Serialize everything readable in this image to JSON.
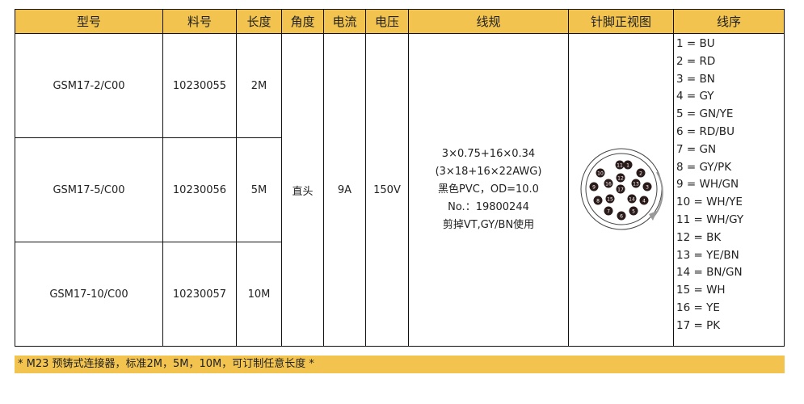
{
  "headers": [
    "型号",
    "料号",
    "长度",
    "角度",
    "电流",
    "电压",
    "线规",
    "针脚正视图",
    "线序"
  ],
  "rows": [
    {
      "model": "GSM17-2/C00",
      "part": "10230055",
      "length": "2M"
    },
    {
      "model": "GSM17-5/C00",
      "part": "10230056",
      "length": "5M"
    },
    {
      "model": "GSM17-10/C00",
      "part": "10230057",
      "length": "10M"
    }
  ],
  "angle": "直头",
  "current": "9A",
  "voltage": "150V",
  "spec": [
    "3×0.75+16×0.34",
    "(3×18+16×22AWG)",
    "黑色PVC，OD=10.0",
    "No.：19800244",
    "剪掉VT,GY/BN使用"
  ],
  "pins": [
    "1",
    "2",
    "3",
    "4",
    "5",
    "6",
    "7",
    "8",
    "9",
    "10",
    "11",
    "12",
    "13",
    "14",
    "15",
    "16",
    "17"
  ],
  "wires": [
    "1 = BU",
    "2 = RD",
    "3 = BN",
    "4 = GY",
    "5 = GN/YE",
    "6 = RD/BU",
    "7 = GN",
    "8 = GY/PK",
    "9 = WH/GN",
    "10 = WH/YE",
    "11 = WH/GY",
    "12 = BK",
    "13 = YE/BN",
    "14 = BN/GN",
    "15 = WH",
    "16 = YE",
    "17 = PK"
  ],
  "footer": "* M23 预铸式连接器，标准2M，5M，10M，可订制任意长度 *",
  "colors": {
    "header": "#f2c44f",
    "pin": "#2a1a1a"
  }
}
